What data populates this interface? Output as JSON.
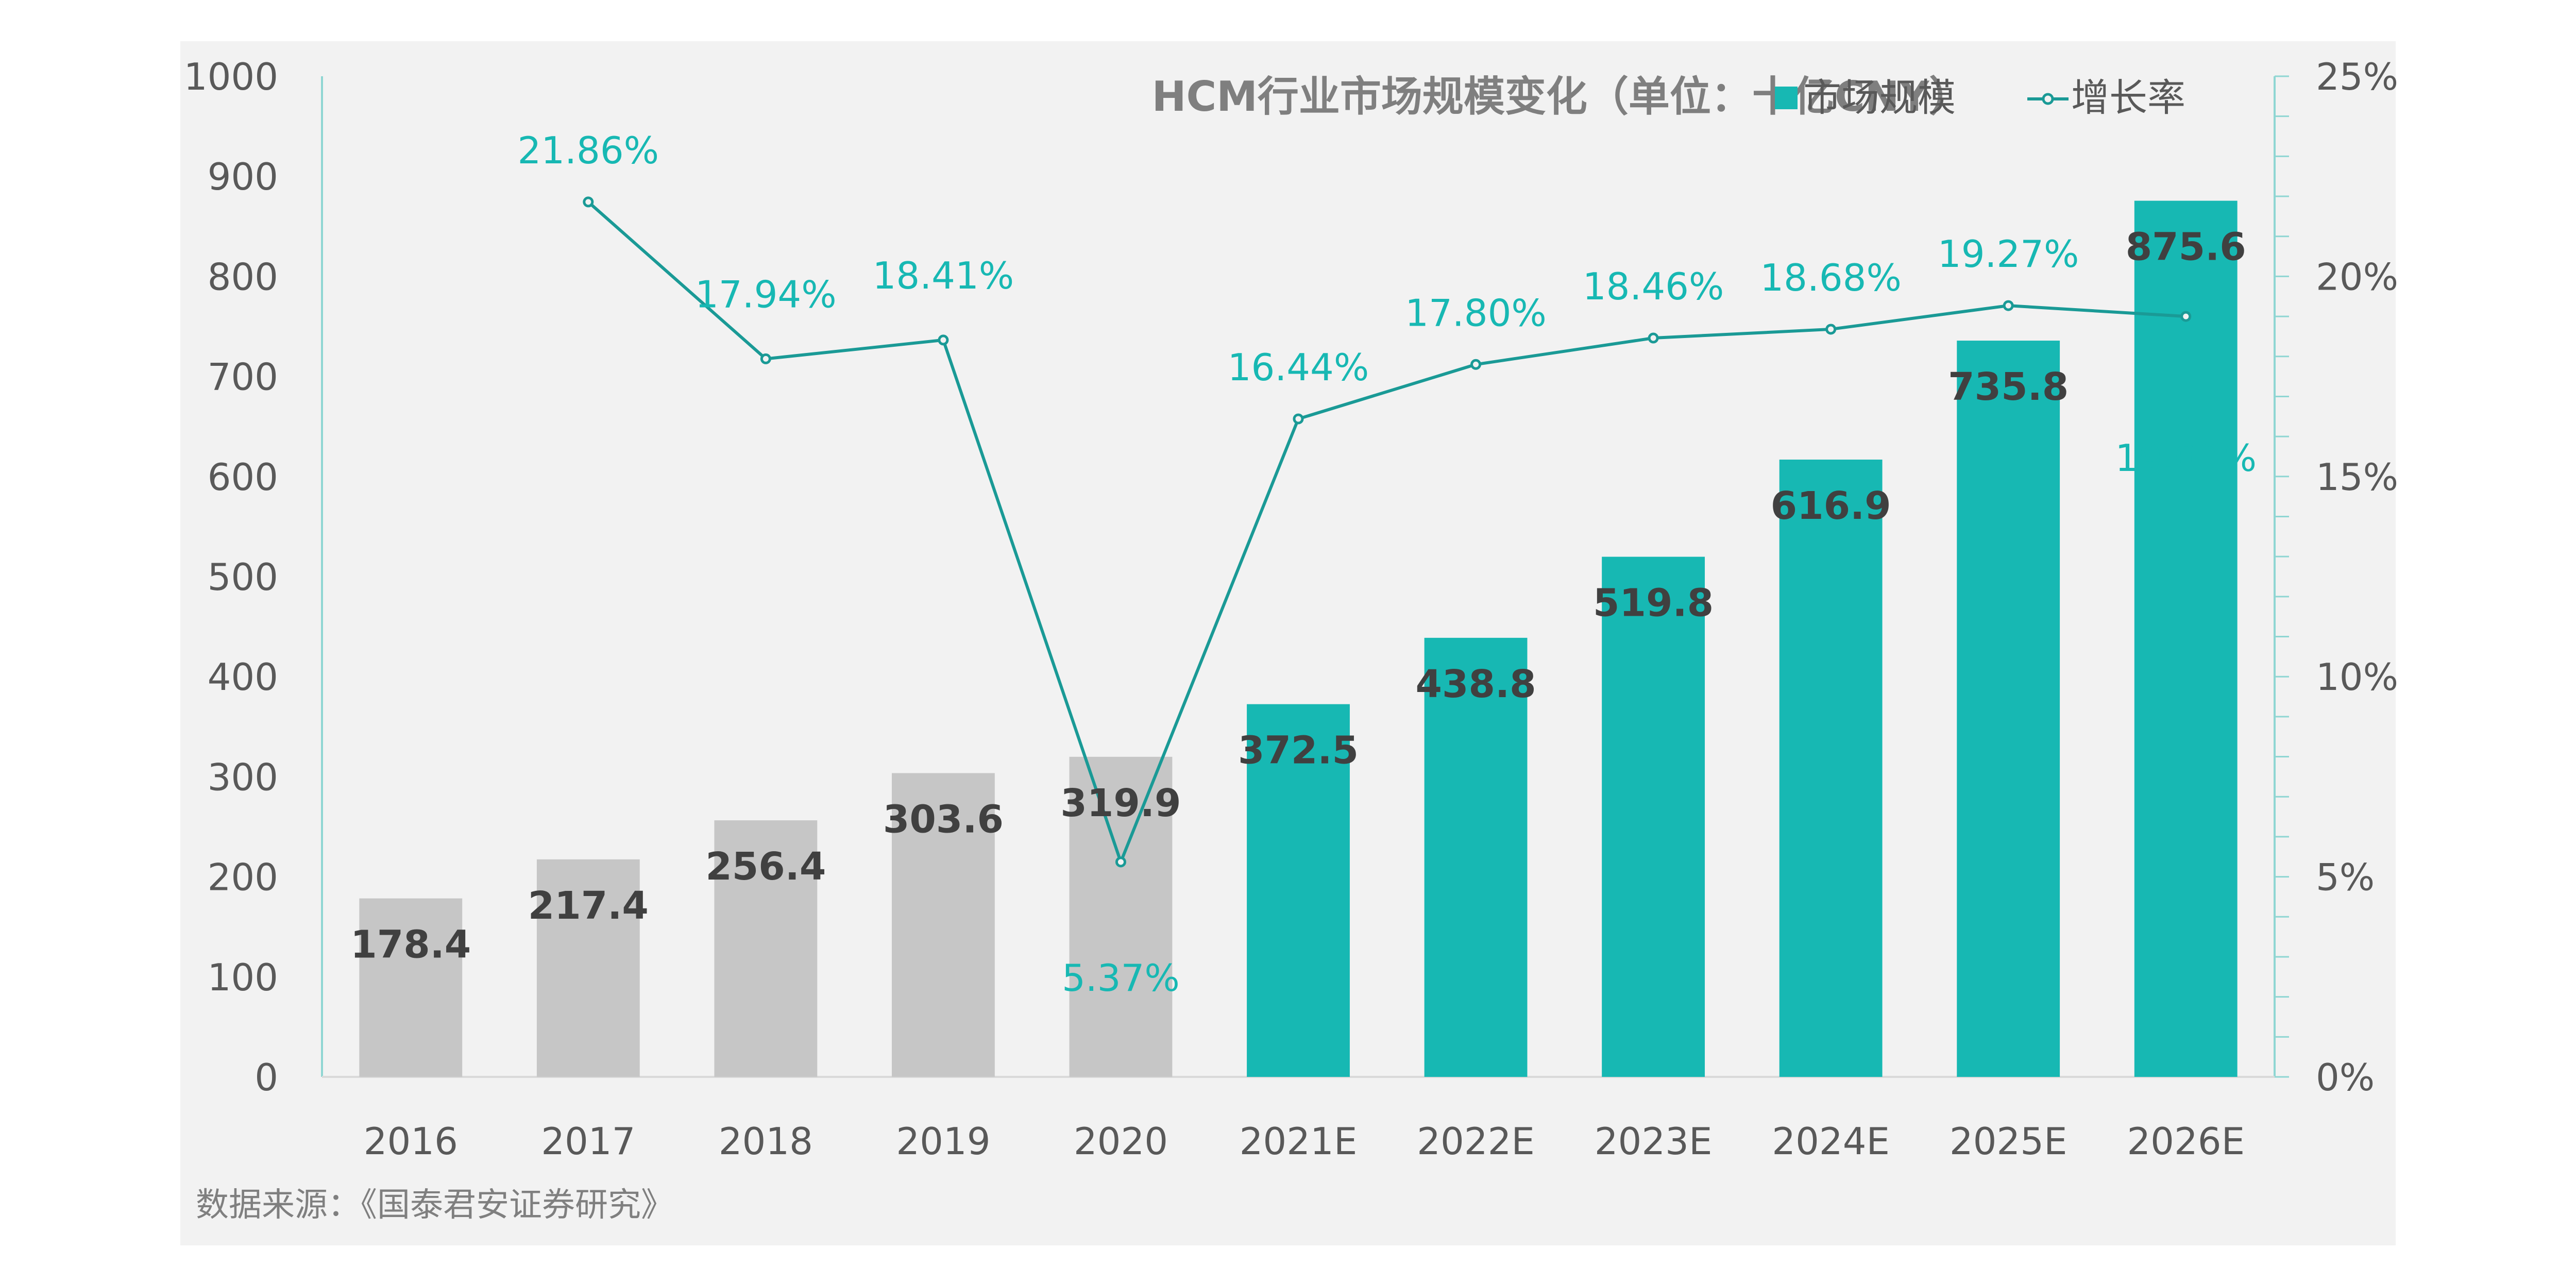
{
  "chart_data": {
    "type": "bar",
    "title": "HCM行业市场规模变化（单位：十亿CNY）",
    "categories": [
      "2016",
      "2017",
      "2018",
      "2019",
      "2020",
      "2021E",
      "2022E",
      "2023E",
      "2024E",
      "2025E",
      "2026E"
    ],
    "series": [
      {
        "name": "市场规模",
        "type": "bar",
        "axis": "left",
        "values": [
          178.4,
          217.4,
          256.4,
          303.6,
          319.9,
          372.5,
          438.8,
          519.8,
          616.9,
          735.8,
          875.6
        ],
        "value_labels": [
          "178.4",
          "217.4",
          "256.4",
          "303.6",
          "319.9",
          "372.5",
          "438.8",
          "519.8",
          "616.9",
          "735.8",
          "875.6"
        ]
      },
      {
        "name": "增长率",
        "type": "line",
        "axis": "right",
        "values": [
          null,
          21.86,
          17.94,
          18.41,
          5.37,
          16.44,
          17.8,
          18.46,
          18.68,
          19.27,
          19.0
        ],
        "value_labels": [
          "",
          "21.86%",
          "17.94%",
          "18.41%",
          "5.37%",
          "16.44%",
          "17.80%",
          "18.46%",
          "18.68%",
          "19.27%",
          "19.00%"
        ]
      }
    ],
    "y_left": {
      "min": 0,
      "max": 1000,
      "ticks": [
        "0",
        "100",
        "200",
        "300",
        "400",
        "500",
        "600",
        "700",
        "800",
        "900",
        "1000"
      ]
    },
    "y_right": {
      "min": 0,
      "max": 25,
      "ticks": [
        "0%",
        "5%",
        "10%",
        "15%",
        "20%",
        "25%"
      ]
    },
    "legend_position": "top-right",
    "grid": false,
    "colors": {
      "actual_bar": "#c6c6c6",
      "estimate_bar": "#17b8b3",
      "line": "#1a9a96",
      "rate_label": "#17b8b3"
    },
    "source": "数据来源：《国泰君安证券研究》"
  }
}
